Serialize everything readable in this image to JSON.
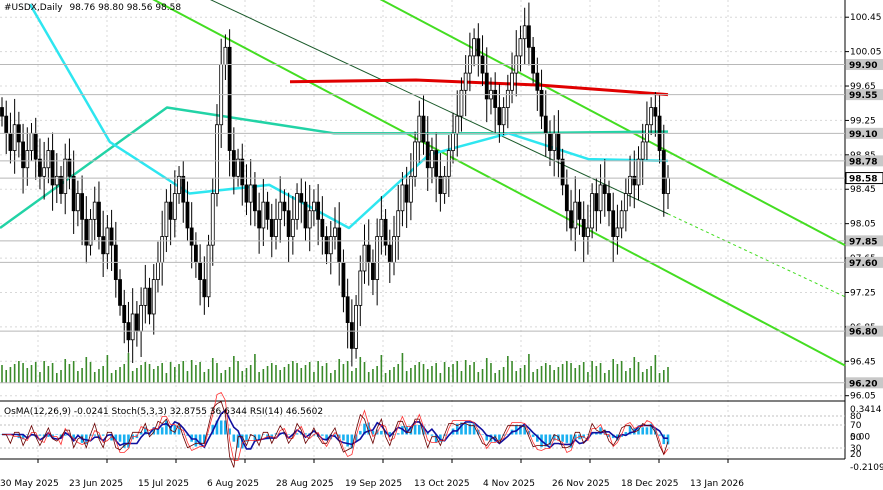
{
  "header": {
    "symbol": "#USDX,Daily",
    "ohlc": "98.76 98.80 98.56 98.58"
  },
  "colors": {
    "background": "#ffffff",
    "candles": "#000000",
    "ma_red": "#e00000",
    "ma_teal": "#22d3a6",
    "ma_cyan": "#2ee6f0",
    "channel": "#44dd22",
    "volume": "#3a8a2a",
    "osma": "#1ab0f0",
    "rsi": "#1010a0",
    "stoch_main": "#6a0000",
    "stoch_signal": "#ff3030"
  },
  "price_axis": {
    "ticks": [
      "100.45",
      "100.05",
      "99.65",
      "99.25",
      "98.85",
      "98.45",
      "98.05",
      "97.65",
      "97.25",
      "96.85",
      "96.45",
      "96.05"
    ],
    "highlighted": [
      {
        "text": "99.90"
      },
      {
        "text": "99.55"
      },
      {
        "text": "99.10"
      },
      {
        "text": "98.78"
      },
      {
        "text": "98.58",
        "current": true
      },
      {
        "text": "97.85"
      },
      {
        "text": "97.60"
      },
      {
        "text": "96.80"
      },
      {
        "text": "96.20"
      }
    ]
  },
  "sub_panel": {
    "label": "OsMA(12,26,9) -0.0241  Stoch(5,3,3) 32.8755 36.6344  RSI(14) 46.5602",
    "ticks": [
      "0.3414",
      "80",
      "70",
      "50",
      "0.00",
      "30",
      "20",
      "-0.2109"
    ]
  },
  "date_axis": [
    "30 May 2025",
    "23 Jun 2025",
    "15 Jul 2025",
    "6 Aug 2025",
    "28 Aug 2025",
    "19 Sep 2025",
    "13 Oct 2025",
    "4 Nov 2025",
    "26 Nov 2025",
    "18 Dec 2025",
    "13 Jan 2026"
  ],
  "chart_data": {
    "type": "candlestick",
    "symbol": "#USDX",
    "timeframe": "Daily",
    "ylim": [
      96.0,
      100.65
    ],
    "close_series": [
      99.3,
      99.1,
      98.9,
      99.2,
      99.0,
      98.7,
      98.9,
      99.1,
      98.8,
      98.6,
      98.7,
      98.9,
      98.5,
      98.6,
      98.4,
      98.8,
      98.6,
      98.2,
      98.4,
      98.1,
      97.8,
      98.1,
      98.3,
      97.9,
      97.7,
      98.0,
      97.8,
      97.4,
      97.1,
      96.9,
      96.7,
      97.0,
      96.8,
      97.1,
      97.3,
      97.0,
      97.4,
      97.6,
      97.9,
      98.3,
      98.1,
      98.4,
      98.6,
      98.3,
      98.0,
      97.8,
      97.6,
      97.4,
      97.2,
      97.8,
      98.4,
      99.2,
      99.9,
      100.1,
      98.9,
      98.6,
      98.8,
      98.5,
      98.3,
      98.5,
      98.2,
      98.0,
      98.3,
      98.1,
      97.9,
      98.1,
      98.3,
      98.2,
      97.9,
      98.1,
      98.4,
      98.3,
      98.0,
      98.2,
      98.3,
      98.1,
      97.9,
      97.7,
      97.9,
      98.0,
      97.6,
      97.2,
      96.9,
      96.6,
      97.1,
      97.5,
      97.8,
      97.6,
      97.4,
      97.9,
      98.1,
      97.8,
      97.6,
      97.9,
      98.2,
      98.5,
      98.3,
      98.6,
      99.0,
      99.3,
      99.0,
      98.7,
      98.9,
      98.6,
      98.4,
      98.6,
      98.9,
      99.1,
      99.3,
      99.6,
      99.8,
      100.0,
      100.2,
      100.0,
      99.8,
      99.5,
      99.6,
      99.4,
      99.2,
      99.4,
      99.6,
      99.8,
      100.0,
      100.2,
      100.35,
      100.1,
      99.8,
      99.6,
      99.3,
      99.1,
      98.9,
      99.1,
      98.8,
      98.5,
      98.2,
      98.0,
      98.3,
      98.1,
      97.9,
      98.0,
      98.4,
      98.2,
      98.5,
      98.4,
      98.2,
      97.9,
      98.0,
      98.2,
      98.4,
      98.6,
      98.5,
      98.8,
      99.0,
      99.2,
      99.4,
      99.3,
      98.9,
      98.4,
      98.58
    ],
    "moving_averages": [
      {
        "color": "red",
        "values": [
          99.7,
          99.72,
          99.66,
          99.55
        ]
      },
      {
        "color": "teal",
        "values": [
          98.0,
          99.4,
          99.1,
          99.1,
          99.12
        ]
      },
      {
        "color": "cyan",
        "values": [
          100.6,
          99.0,
          98.4,
          98.5,
          98.0,
          98.85,
          99.1,
          98.8,
          98.78
        ]
      }
    ],
    "channel_lines": [
      {
        "x": [
          0,
          1
        ],
        "y": [
          101.6,
          96.4
        ]
      },
      {
        "x": [
          0,
          1
        ],
        "y": [
          103.0,
          97.8
        ]
      },
      {
        "x": [
          0,
          1
        ],
        "y": [
          101.8,
          97.2
        ],
        "dashed_end": true
      }
    ],
    "indicators": {
      "OsMA": {
        "params": "12,26,9",
        "value": -0.0241
      },
      "Stoch": {
        "params": "5,3,3",
        "main": 32.8755,
        "signal": 36.6344
      },
      "RSI": {
        "params": "14",
        "value": 46.5602
      }
    }
  }
}
